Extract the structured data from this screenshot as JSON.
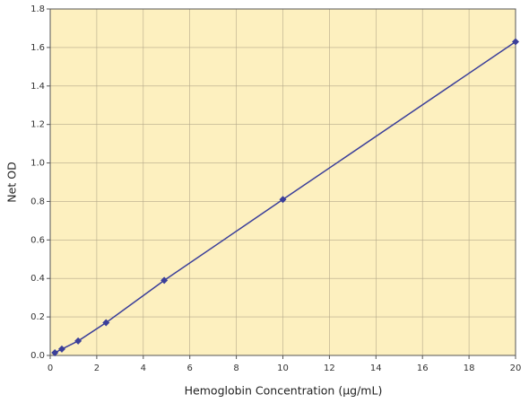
{
  "chart_data": {
    "type": "line",
    "x_label": "Hemoglobin Concentration (µg/mL)",
    "y_label": "Net OD",
    "x": [
      0.2,
      0.5,
      1.2,
      2.4,
      4.9,
      10,
      20
    ],
    "series": [
      {
        "color": "#3b3f9a",
        "values": [
          0.014,
          0.033,
          0.075,
          0.17,
          0.39,
          0.81,
          1.63
        ]
      }
    ],
    "xlim": [
      0,
      20
    ],
    "xticks": [
      0,
      2,
      4,
      6,
      8,
      10,
      12,
      14,
      16,
      18,
      20
    ],
    "ylim": [
      0,
      1.8
    ],
    "yticks": [
      {
        "value": 0,
        "label": "0.0"
      },
      0.2,
      0.4,
      0.6,
      0.8,
      {
        "value": 1,
        "label": "1.0"
      },
      1.2,
      1.4,
      1.6,
      1.8
    ],
    "grid": true,
    "background": "#fdf0bf"
  }
}
